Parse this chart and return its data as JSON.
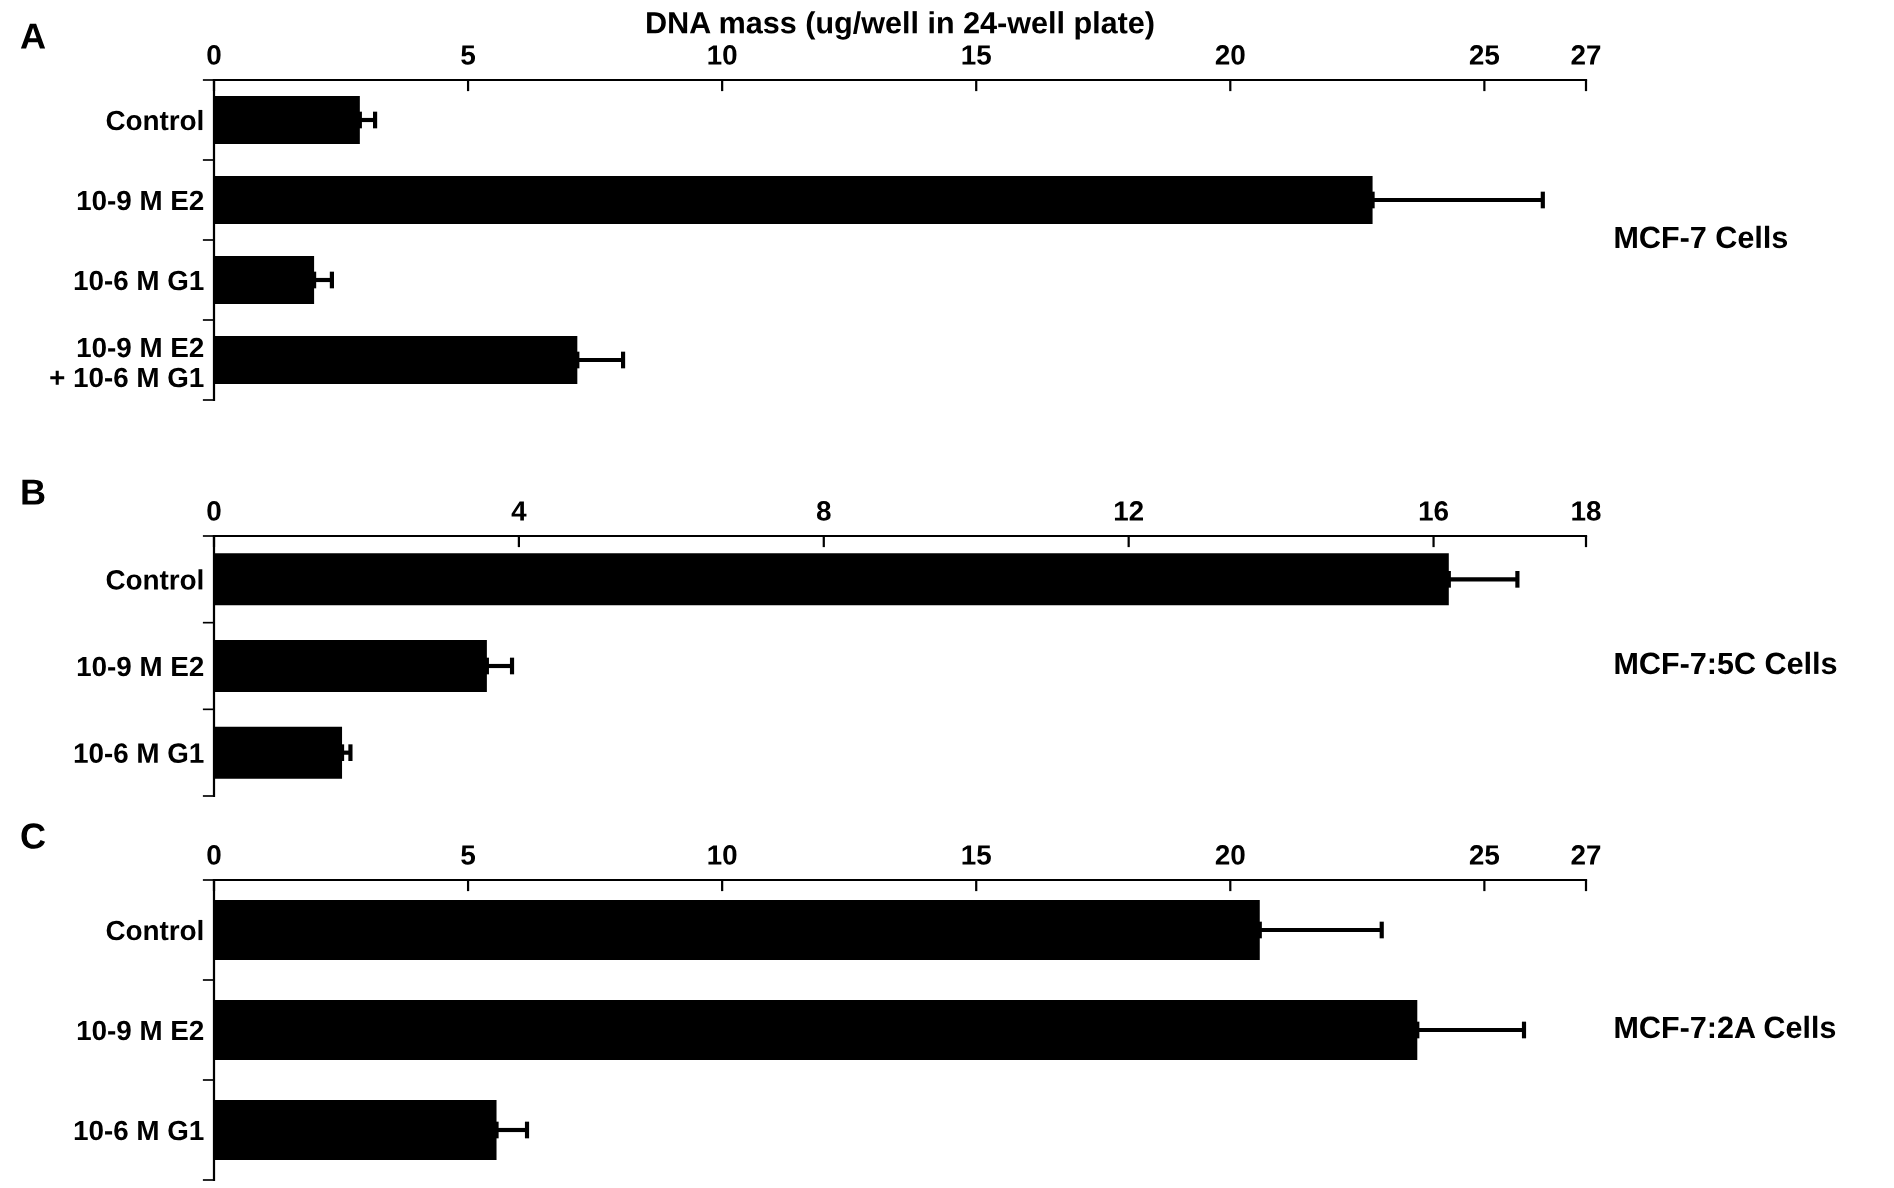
{
  "chart_data": [
    {
      "type": "bar",
      "orientation": "horizontal",
      "title": "A",
      "xlabel": "DNA mass (ug/well in 24-well plate)",
      "categories": [
        "Control",
        "10-9 M E2",
        "10-6 M G1",
        "10-9 M E2\n+ 10-6 M G1"
      ],
      "values": [
        2.87,
        22.8,
        1.97,
        7.15
      ],
      "errors": [
        0.3,
        3.35,
        0.35,
        0.9
      ],
      "color": "#000000",
      "xlim": [
        0,
        27
      ],
      "xticks": [
        0,
        5,
        10,
        15,
        20,
        25,
        27
      ],
      "annotations": [
        "MCF-7 Cells"
      ],
      "grid": false,
      "legend": false
    },
    {
      "type": "bar",
      "orientation": "horizontal",
      "title": "B",
      "categories": [
        "Control",
        "10-9 M E2",
        "10-6 M G1"
      ],
      "values": [
        16.2,
        3.58,
        1.68
      ],
      "errors": [
        0.9,
        0.33,
        0.11
      ],
      "color": "#000000",
      "xlim": [
        0,
        18
      ],
      "xticks": [
        0,
        4,
        8,
        12,
        16,
        18
      ],
      "annotations": [
        "MCF-7:5C Cells"
      ],
      "grid": false,
      "legend": false
    },
    {
      "type": "bar",
      "orientation": "horizontal",
      "title": "C",
      "categories": [
        "Control",
        "10-9 M E2",
        "10-6 M G1"
      ],
      "values": [
        20.58,
        23.68,
        5.56
      ],
      "errors": [
        2.4,
        2.1,
        0.6
      ],
      "color": "#000000",
      "xlim": [
        0,
        27
      ],
      "xticks": [
        0,
        5,
        10,
        15,
        20,
        25,
        27
      ],
      "annotations": [
        "MCF-7:2A Cells"
      ],
      "grid": false,
      "legend": false
    }
  ]
}
